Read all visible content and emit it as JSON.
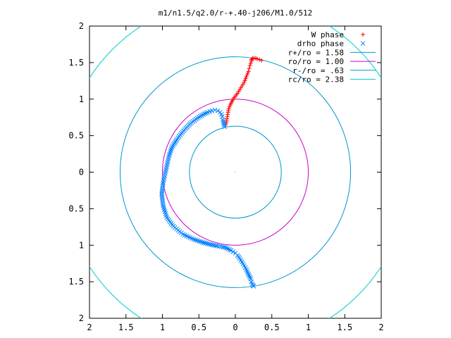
{
  "chart_data": {
    "type": "scatter",
    "title": "m1/n1.5/q2.0/r-+.40-j206/M1.0/512",
    "xlim": [
      -2,
      2
    ],
    "ylim": [
      -2,
      2
    ],
    "x_tick_values": [
      -2,
      -1.5,
      -1,
      -0.5,
      0,
      0.5,
      1,
      1.5,
      2
    ],
    "x_tick_labels": [
      "2",
      "1.5",
      "1",
      "0.5",
      "0",
      "0.5",
      "1",
      "1.5",
      "2"
    ],
    "y_tick_values": [
      2,
      1.5,
      1,
      0.5,
      0,
      -0.5,
      -1,
      -1.5,
      -2
    ],
    "y_tick_labels": [
      "2",
      "1.5",
      "1",
      "0.5",
      "0",
      "0.5",
      "1",
      "1.5",
      "2"
    ],
    "grid": false,
    "legend_position": "top-right",
    "series": [
      {
        "name": "W phase",
        "kind": "points",
        "marker": "+",
        "color": "#ff0000",
        "x": [
          -0.13,
          -0.12,
          -0.11,
          -0.1,
          -0.09,
          -0.07,
          -0.05,
          -0.03,
          0.0,
          0.03,
          0.06,
          0.09,
          0.12,
          0.14,
          0.16,
          0.18,
          0.19,
          0.2,
          0.21,
          0.22,
          0.22,
          0.23,
          0.24,
          0.26,
          0.28,
          0.3,
          0.36
        ],
        "y": [
          0.65,
          0.7,
          0.76,
          0.82,
          0.87,
          0.92,
          0.96,
          1.0,
          1.04,
          1.08,
          1.13,
          1.18,
          1.23,
          1.28,
          1.33,
          1.38,
          1.42,
          1.46,
          1.49,
          1.52,
          1.54,
          1.55,
          1.56,
          1.56,
          1.56,
          1.55,
          1.53
        ]
      },
      {
        "name": "drho phase",
        "kind": "points",
        "marker": "x",
        "color": "#0080ff",
        "x": [
          -0.15,
          -0.16,
          -0.17,
          -0.18,
          -0.19,
          -0.21,
          -0.24,
          -0.28,
          -0.32,
          -0.38,
          -0.44,
          -0.52,
          -0.6,
          -0.68,
          -0.74,
          -0.8,
          -0.87,
          -0.91,
          -0.95,
          -0.99,
          -1.01,
          -0.99,
          -0.94,
          -0.85,
          -0.72,
          -0.57,
          -0.45,
          -0.34,
          -0.25,
          -0.19,
          -0.14,
          -0.1,
          -0.06,
          -0.03,
          0.0,
          0.03,
          0.06,
          0.09,
          0.12,
          0.15,
          0.17,
          0.19,
          0.21,
          0.22,
          0.23,
          0.24,
          0.25
        ],
        "y": [
          0.62,
          0.67,
          0.72,
          0.76,
          0.79,
          0.82,
          0.84,
          0.85,
          0.84,
          0.82,
          0.79,
          0.74,
          0.68,
          0.6,
          0.53,
          0.45,
          0.34,
          0.22,
          0.04,
          -0.14,
          -0.3,
          -0.46,
          -0.62,
          -0.74,
          -0.85,
          -0.92,
          -0.96,
          -0.99,
          -1.01,
          -1.02,
          -1.03,
          -1.05,
          -1.07,
          -1.09,
          -1.11,
          -1.14,
          -1.18,
          -1.23,
          -1.28,
          -1.33,
          -1.38,
          -1.42,
          -1.46,
          -1.5,
          -1.53,
          -1.55,
          -1.56
        ]
      },
      {
        "name": "r+/ro = 1.58",
        "kind": "circle",
        "radius": 1.58,
        "color": "#0097cc"
      },
      {
        "name": "ro/ro = 1.00",
        "kind": "circle",
        "radius": 1.0,
        "color": "#cc00cc"
      },
      {
        "name": "r-/ro = .63",
        "kind": "circle",
        "radius": 0.63,
        "color": "#0097cc"
      },
      {
        "name": "rc/ro = 2.38",
        "kind": "circle",
        "radius": 2.38,
        "color": "#00cccc"
      }
    ]
  }
}
